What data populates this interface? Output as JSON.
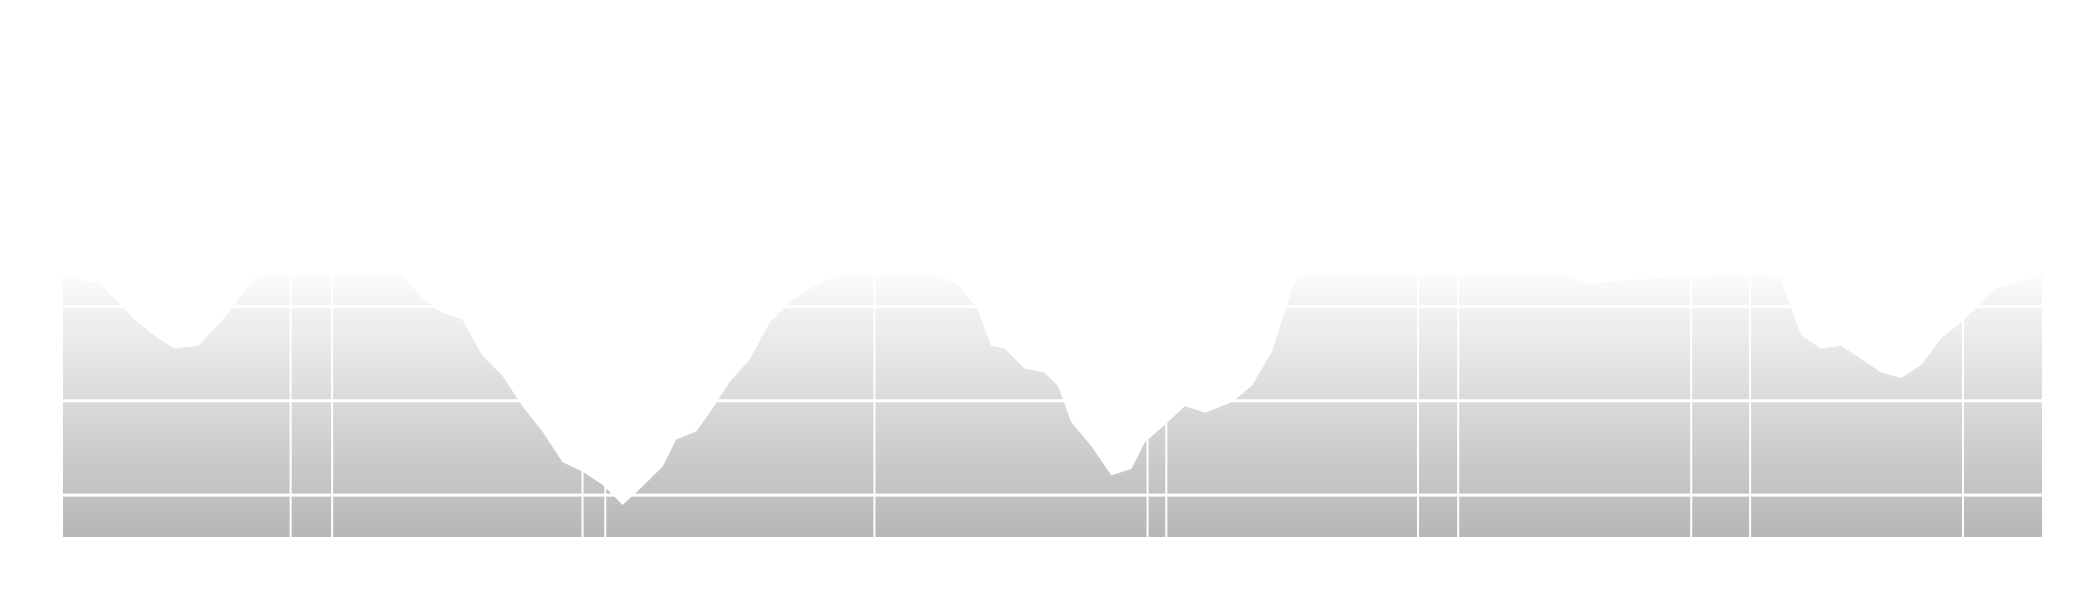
{
  "chart_data": {
    "type": "area",
    "x": [
      0,
      28,
      53,
      68,
      83,
      101,
      118,
      143,
      153,
      253,
      268,
      283,
      298,
      313,
      328,
      343,
      358,
      373,
      388,
      403,
      418,
      433,
      448,
      458,
      473,
      483,
      498,
      513,
      528,
      543,
      558,
      578,
      653,
      668,
      683,
      693,
      703,
      718,
      733,
      743,
      753,
      768,
      783,
      798,
      808,
      823,
      838,
      853,
      873,
      888,
      903,
      918,
      923,
      1123,
      1138,
      1153,
      1183,
      1213,
      1273,
      1283,
      1298,
      1313,
      1328,
      1343,
      1358,
      1373,
      1388,
      1403,
      1418,
      1443,
      1478
    ],
    "values": [
      100,
      96.4,
      83.2,
      77,
      71.9,
      73,
      82.1,
      98.5,
      100,
      100,
      91.3,
      85.7,
      83.2,
      69.4,
      61.7,
      50,
      40.3,
      28.6,
      25,
      19.9,
      12.2,
      19.4,
      27,
      37.2,
      40.3,
      47.4,
      59.2,
      67.9,
      82.1,
      89.8,
      94.9,
      100,
      100,
      96.4,
      87.2,
      73,
      72,
      64.3,
      62.8,
      57.7,
      43.9,
      34.7,
      23.5,
      26,
      36.2,
      42.9,
      50,
      47.4,
      51.5,
      57.7,
      70.9,
      94.9,
      100,
      100,
      96.4,
      97.4,
      98.5,
      99.5,
      100,
      98.5,
      77,
      71.9,
      73,
      67.9,
      62.8,
      60.7,
      65.8,
      76,
      82.1,
      94.9,
      100
    ],
    "xlim": [
      0,
      1478
    ],
    "ylim": [
      0,
      100
    ],
    "xticks": [
      170,
      201,
      388,
      405,
      606,
      810,
      824,
      1012,
      1042,
      1216,
      1260,
      1419
    ],
    "yticks": [
      16,
      52,
      88
    ],
    "grid": true,
    "color_top": "#fbfbfb",
    "color_bottom": "#b6b6b6",
    "grid_color": "#ffffff"
  }
}
